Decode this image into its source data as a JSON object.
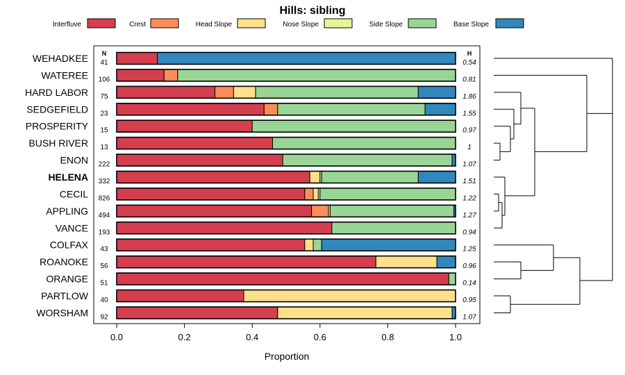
{
  "chart_data": {
    "type": "bar",
    "orientation": "horizontal-stacked",
    "title": "Hills: sibling",
    "xlabel": "Proportion",
    "ylabel": "",
    "xlim": [
      0,
      1
    ],
    "xticks": [
      "0.0",
      "0.2",
      "0.4",
      "0.6",
      "0.8",
      "1.0"
    ],
    "n_header": "N",
    "h_header": "H",
    "highlight": "HELENA",
    "legend_position": "top",
    "series": [
      {
        "name": "Interfluve",
        "color": "#D53E4F"
      },
      {
        "name": "Crest",
        "color": "#FC8D59"
      },
      {
        "name": "Head Slope",
        "color": "#FEE08B"
      },
      {
        "name": "Nose Slope",
        "color": "#E6F598"
      },
      {
        "name": "Side Slope",
        "color": "#99D594"
      },
      {
        "name": "Base Slope",
        "color": "#3288BD"
      }
    ],
    "categories": [
      {
        "label": "WEHADKEE",
        "n": "41",
        "h": "0.54",
        "values": [
          0.12,
          0,
          0,
          0,
          0,
          0.88
        ]
      },
      {
        "label": "WATEREE",
        "n": "106",
        "h": "0.81",
        "values": [
          0.14,
          0.04,
          0,
          0,
          0.82,
          0
        ]
      },
      {
        "label": "HARD LABOR",
        "n": "75",
        "h": "1.86",
        "values": [
          0.29,
          0.055,
          0.065,
          0,
          0.48,
          0.11
        ]
      },
      {
        "label": "SEDGEFIELD",
        "n": "23",
        "h": "1.55",
        "values": [
          0.435,
          0.04,
          0,
          0,
          0.435,
          0.09
        ]
      },
      {
        "label": "PROSPERITY",
        "n": "15",
        "h": "0.97",
        "values": [
          0.4,
          0,
          0,
          0,
          0.6,
          0
        ]
      },
      {
        "label": "BUSH RIVER",
        "n": "13",
        "h": "1",
        "values": [
          0.46,
          0,
          0,
          0,
          0.54,
          0
        ]
      },
      {
        "label": "ENON",
        "n": "222",
        "h": "1.07",
        "values": [
          0.49,
          0,
          0,
          0,
          0.5,
          0.01
        ]
      },
      {
        "label": "HELENA",
        "n": "332",
        "h": "1.51",
        "values": [
          0.57,
          0,
          0.03,
          0.005,
          0.285,
          0.11
        ]
      },
      {
        "label": "CECIL",
        "n": "826",
        "h": "1.22",
        "values": [
          0.555,
          0.025,
          0.015,
          0.005,
          0.4,
          0
        ]
      },
      {
        "label": "APPLING",
        "n": "494",
        "h": "1.27",
        "values": [
          0.575,
          0.05,
          0,
          0.005,
          0.365,
          0.005
        ]
      },
      {
        "label": "VANCE",
        "n": "193",
        "h": "0.94",
        "values": [
          0.635,
          0,
          0,
          0,
          0.365,
          0
        ]
      },
      {
        "label": "COLFAX",
        "n": "43",
        "h": "1.25",
        "values": [
          0.555,
          0,
          0.025,
          0,
          0.025,
          0.395
        ]
      },
      {
        "label": "ROANOKE",
        "n": "56",
        "h": "0.96",
        "values": [
          0.765,
          0,
          0.18,
          0,
          0,
          0.055
        ]
      },
      {
        "label": "ORANGE",
        "n": "51",
        "h": "0.14",
        "values": [
          0.98,
          0,
          0,
          0,
          0.02,
          0
        ]
      },
      {
        "label": "PARTLOW",
        "n": "40",
        "h": "0.95",
        "values": [
          0.375,
          0,
          0.625,
          0,
          0,
          0
        ]
      },
      {
        "label": "WORSHAM",
        "n": "92",
        "h": "1.07",
        "values": [
          0.475,
          0,
          0.515,
          0,
          0,
          0.01
        ]
      }
    ],
    "dendrogram": "hierarchical clustering of the 16 series (right side)"
  }
}
